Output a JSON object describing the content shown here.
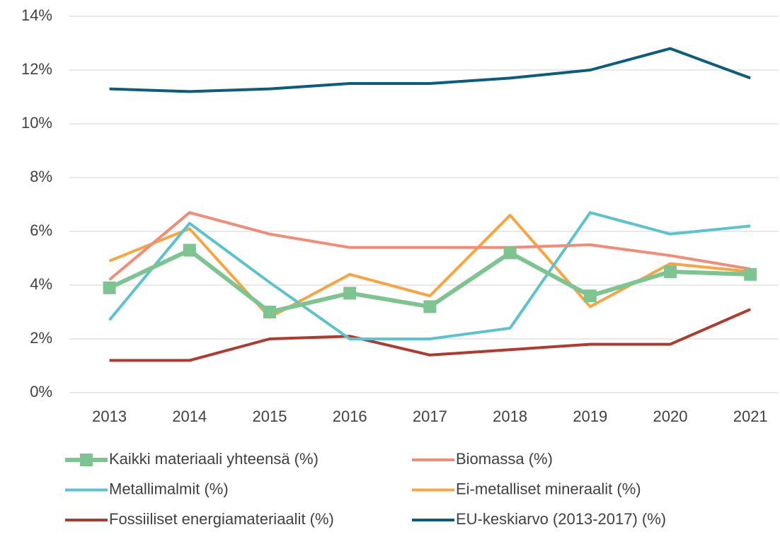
{
  "chart_data": {
    "type": "line",
    "categories": [
      "2013",
      "2014",
      "2015",
      "2016",
      "2017",
      "2018",
      "2019",
      "2020",
      "2021"
    ],
    "series": [
      {
        "name": "Kaikki materiaali yhteensä (%)",
        "color": "#7dc491",
        "values": [
          3.9,
          5.3,
          3.0,
          3.7,
          3.2,
          5.2,
          3.6,
          4.5,
          4.4
        ]
      },
      {
        "name": "Biomassa (%)",
        "color": "#f08c78",
        "values": [
          4.2,
          6.7,
          5.9,
          5.4,
          5.4,
          5.4,
          5.5,
          5.1,
          4.6
        ]
      },
      {
        "name": "Metallimalmit (%)",
        "color": "#5bc3cd",
        "values": [
          2.7,
          6.3,
          4.1,
          2.0,
          2.0,
          2.4,
          6.7,
          5.9,
          6.2
        ]
      },
      {
        "name": "Ei-metalliset mineraalit (%)",
        "color": "#f7a441",
        "values": [
          4.9,
          6.1,
          2.8,
          4.4,
          3.6,
          6.6,
          3.2,
          4.8,
          4.5
        ]
      },
      {
        "name": "Fossiiliset energiamateriaalit (%)",
        "color": "#b03a2e",
        "values": [
          1.2,
          1.2,
          2.0,
          2.1,
          1.4,
          1.6,
          1.8,
          1.8,
          3.1
        ]
      },
      {
        "name": "EU-keskiarvo (2013-2017) (%)",
        "color": "#0a5d7e",
        "values": [
          11.3,
          11.2,
          11.3,
          11.5,
          11.5,
          11.7,
          12.0,
          12.8,
          11.7
        ]
      }
    ],
    "ylim": [
      0,
      14
    ],
    "yticks": [
      {
        "value": 0,
        "label": "0%"
      },
      {
        "value": 2,
        "label": "2%"
      },
      {
        "value": 4,
        "label": "4%"
      },
      {
        "value": 6,
        "label": "6%"
      },
      {
        "value": 8,
        "label": "8%"
      },
      {
        "value": 10,
        "label": "10%"
      },
      {
        "value": 12,
        "label": "12%"
      },
      {
        "value": 14,
        "label": "14%"
      }
    ],
    "grid": true
  }
}
